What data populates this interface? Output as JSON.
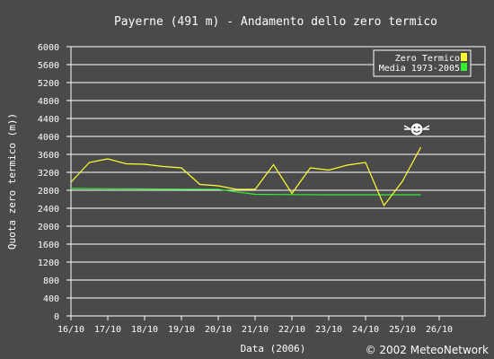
{
  "chart_data": {
    "type": "line",
    "title": "Payerne (491 m) - Andamento dello zero termico",
    "xlabel": "Data (2006)",
    "ylabel": "Quota zero termico (m))",
    "ylim": [
      0,
      6000
    ],
    "y_ticks": [
      "0",
      "400",
      "800",
      "1200",
      "1600",
      "2000",
      "2400",
      "2800",
      "3200",
      "3600",
      "4000",
      "4400",
      "4800",
      "5200",
      "5600",
      "6000"
    ],
    "x_ticks": [
      "16/10",
      "17/10",
      "18/10",
      "19/10",
      "20/10",
      "21/10",
      "22/10",
      "23/10",
      "24/10",
      "25/10",
      "26/10"
    ],
    "grid": true,
    "legend_position": "top-right",
    "series": [
      {
        "name": "Zero Termico",
        "color": "#ffff33",
        "x": [
          "16/10 00h",
          "16/10 12h",
          "17/10 00h",
          "17/10 12h",
          "18/10 00h",
          "18/10 12h",
          "19/10 00h",
          "19/10 12h",
          "20/10 00h",
          "20/10 12h",
          "21/10 00h",
          "21/10 12h",
          "22/10 00h",
          "22/10 12h",
          "23/10 00h",
          "23/10 12h",
          "24/10 00h",
          "24/10 12h",
          "25/10 00h",
          "25/10 12h"
        ],
        "values": [
          2980,
          3420,
          3500,
          3390,
          3380,
          3330,
          3300,
          2930,
          2900,
          2820,
          2820,
          3370,
          2730,
          3300,
          3250,
          3360,
          3420,
          2460,
          3000,
          3760
        ]
      },
      {
        "name": "Media 1973-2005",
        "color": "#33ee33",
        "x": [
          "16/10",
          "17/10",
          "18/10",
          "19/10",
          "20/10",
          "21/10",
          "22/10",
          "23/10",
          "24/10",
          "25/10",
          "25/10 12h"
        ],
        "values": [
          2840,
          2835,
          2830,
          2825,
          2820,
          2710,
          2705,
          2700,
          2700,
          2700,
          2700
        ]
      }
    ]
  },
  "credit": "© 2002 MeteoNetwork",
  "icons": {
    "mascot": "smiley-face-icon"
  }
}
